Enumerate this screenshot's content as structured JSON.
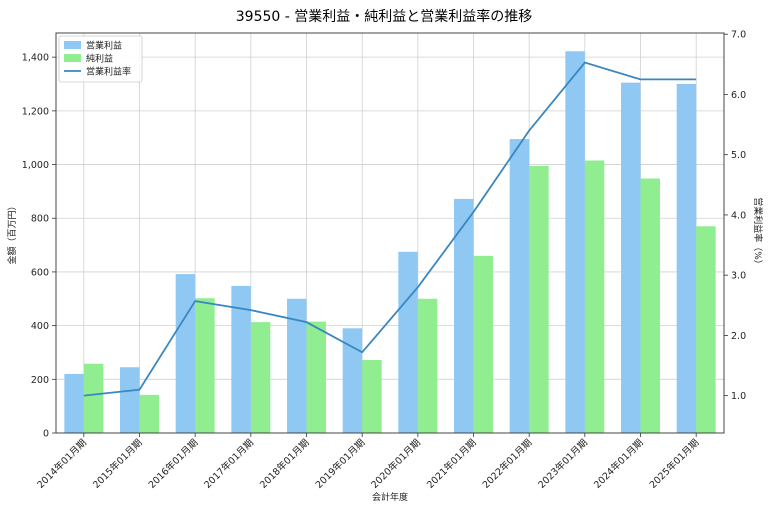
{
  "chart_data": {
    "type": "bar",
    "title": "39550 - 営業利益・純利益と営業利益率の推移",
    "xlabel": "会計年度",
    "ylabel": "金額（百万円）",
    "y2label": "営業利益率（%）",
    "categories": [
      "2014年01月期",
      "2015年01月期",
      "2016年01月期",
      "2017年01月期",
      "2018年01月期",
      "2019年01月期",
      "2020年01月期",
      "2021年01月期",
      "2022年01月期",
      "2023年01月期",
      "2024年01月期",
      "2025年01月期"
    ],
    "series": [
      {
        "name": "営業利益",
        "kind": "bar",
        "color": "#90c8f4",
        "axis": "left",
        "values": [
          220,
          245,
          592,
          548,
          500,
          390,
          675,
          872,
          1095,
          1422,
          1305,
          1300
        ]
      },
      {
        "name": "純利益",
        "kind": "bar",
        "color": "#90ee90",
        "axis": "left",
        "values": [
          258,
          142,
          502,
          413,
          415,
          272,
          500,
          660,
          995,
          1015,
          948,
          770
        ]
      },
      {
        "name": "営業利益率",
        "kind": "line",
        "color": "#3a87c0",
        "axis": "right",
        "values": [
          1.0,
          1.1,
          2.57,
          2.42,
          2.22,
          1.72,
          2.8,
          4.05,
          5.4,
          6.53,
          6.25,
          6.25
        ]
      }
    ],
    "ylim": [
      0,
      1490
    ],
    "yticks": [
      0,
      200,
      400,
      600,
      800,
      1000,
      1200,
      1400
    ],
    "ytick_labels": [
      "0",
      "200",
      "400",
      "600",
      "800",
      "1,000",
      "1,200",
      "1,400"
    ],
    "y2lim": [
      0.38,
      7.02
    ],
    "y2ticks": [
      1.0,
      2.0,
      3.0,
      4.0,
      5.0,
      6.0,
      7.0
    ],
    "y2tick_labels": [
      "1.0",
      "2.0",
      "3.0",
      "4.0",
      "5.0",
      "6.0",
      "7.0"
    ],
    "grid": true,
    "legend_position": "top-left"
  }
}
